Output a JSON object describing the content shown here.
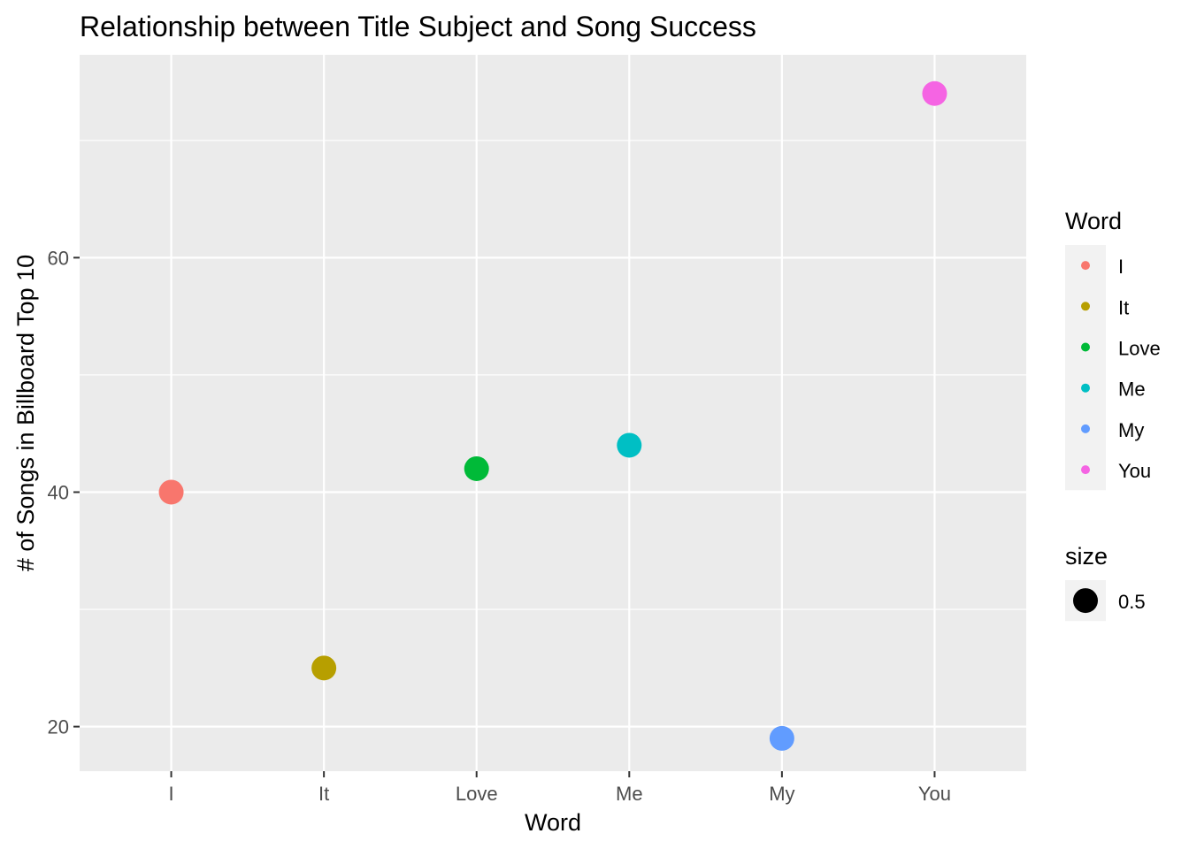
{
  "chart_data": {
    "type": "scatter",
    "title": "Relationship between Title Subject and Song Success",
    "xlabel": "Word",
    "ylabel": "# of Songs in Billboard Top 10",
    "categories": [
      "I",
      "It",
      "Love",
      "Me",
      "My",
      "You"
    ],
    "values": [
      40,
      25,
      42,
      44,
      19,
      74
    ],
    "colors": [
      "#F8766D",
      "#B79F00",
      "#00BA38",
      "#00BFC4",
      "#619CFF",
      "#F564E3"
    ],
    "ylim": [
      16.2,
      77.3
    ],
    "y_ticks": [
      20,
      40,
      60
    ],
    "y_tick_labels": [
      "20",
      "40",
      "60"
    ],
    "grid": true,
    "panel_background": "#EBEBEB",
    "legend": {
      "position": "right",
      "color_title": "Word",
      "color_items": [
        "I",
        "It",
        "Love",
        "Me",
        "My",
        "You"
      ],
      "size_title": "size",
      "size_items": [
        "0.5"
      ]
    }
  }
}
